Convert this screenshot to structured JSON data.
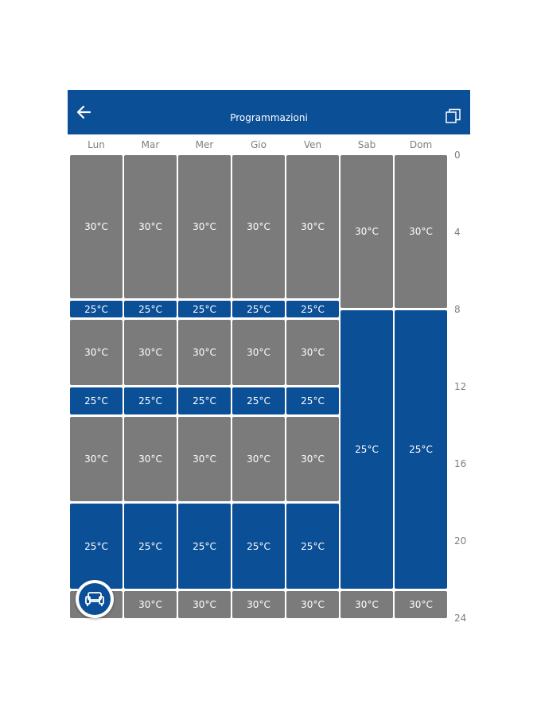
{
  "header": {
    "title": "Programmazioni",
    "back_icon": "arrow-left-icon",
    "copy_icon": "copy-icon"
  },
  "colors": {
    "primary": "#0b4f96",
    "comfort": "#7b7b7b"
  },
  "days": [
    "Lun",
    "Mar",
    "Mer",
    "Gio",
    "Ven",
    "Sab",
    "Dom"
  ],
  "hours": [
    "0",
    "4",
    "8",
    "12",
    "16",
    "20",
    "24"
  ],
  "schedule": {
    "weekday": [
      {
        "label": "30°C",
        "type": "gray"
      },
      {
        "label": "25°C",
        "type": "blue"
      },
      {
        "label": "30°C",
        "type": "gray"
      },
      {
        "label": "25°C",
        "type": "blue"
      },
      {
        "label": "30°C",
        "type": "gray"
      },
      {
        "label": "25°C",
        "type": "blue"
      },
      {
        "label": "30°C",
        "type": "gray"
      }
    ],
    "weekend": [
      {
        "label": "30°C",
        "type": "gray"
      },
      {
        "label": "25°C",
        "type": "blue"
      },
      {
        "label": "30°C",
        "type": "gray"
      }
    ]
  },
  "fab": {
    "icon": "sofa-icon"
  }
}
